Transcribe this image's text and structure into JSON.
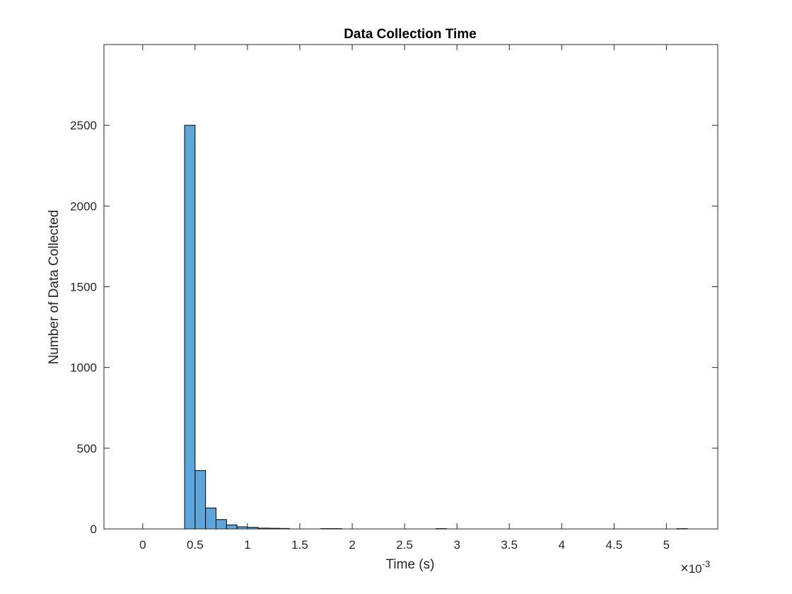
{
  "chart_data": {
    "type": "bar",
    "title": "Data Collection Time",
    "xlabel": "Time (s)",
    "ylabel": "Number of Data Collected",
    "xlim": [
      -0.00037,
      0.00549
    ],
    "ylim": [
      0,
      3000
    ],
    "x_exponent": {
      "base": "10",
      "power": "-3"
    },
    "xticks": [
      0,
      0.0005,
      0.001,
      0.0015,
      0.002,
      0.0025,
      0.003,
      0.0035,
      0.004,
      0.0045,
      0.005
    ],
    "xtick_labels": [
      "0",
      "0.5",
      "1",
      "1.5",
      "2",
      "2.5",
      "3",
      "3.5",
      "4",
      "4.5",
      "5"
    ],
    "yticks": [
      0,
      500,
      1000,
      1500,
      2000,
      2500
    ],
    "ytick_labels": [
      "0",
      "500",
      "1000",
      "1500",
      "2000",
      "2500"
    ],
    "bin_width": 0.0001,
    "bins": [
      {
        "x0": 0.0004,
        "count": 2500
      },
      {
        "x0": 0.0005,
        "count": 362
      },
      {
        "x0": 0.0006,
        "count": 130
      },
      {
        "x0": 0.0007,
        "count": 58
      },
      {
        "x0": 0.0008,
        "count": 25
      },
      {
        "x0": 0.0009,
        "count": 13
      },
      {
        "x0": 0.001,
        "count": 10
      },
      {
        "x0": 0.0011,
        "count": 5
      },
      {
        "x0": 0.0012,
        "count": 4
      },
      {
        "x0": 0.0013,
        "count": 3
      },
      {
        "x0": 0.0017,
        "count": 2
      },
      {
        "x0": 0.0018,
        "count": 2
      },
      {
        "x0": 0.0028,
        "count": 2
      },
      {
        "x0": 0.0051,
        "count": 2
      }
    ],
    "grid": false,
    "legend": "none",
    "bar_color": "#5DA5DA",
    "bar_edge_color": "#000000"
  }
}
